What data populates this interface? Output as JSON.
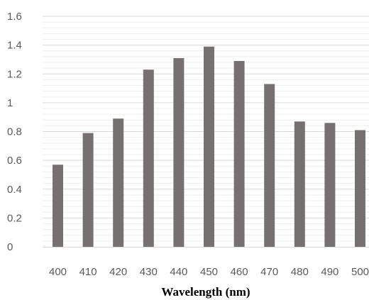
{
  "chart_data": {
    "type": "bar",
    "title": "",
    "xlabel": "Wavelength (nm)",
    "ylabel": "",
    "categories": [
      "400",
      "410",
      "420",
      "430",
      "440",
      "450",
      "460",
      "470",
      "480",
      "490",
      "500"
    ],
    "values": [
      0.57,
      0.79,
      0.89,
      1.23,
      1.31,
      1.39,
      1.29,
      1.13,
      0.87,
      0.86,
      0.81
    ],
    "ylim": [
      0,
      1.6
    ],
    "yticks": [
      "0",
      "0.2",
      "0.4",
      "0.6",
      "0.8",
      "1",
      "1.2",
      "1.4",
      "1.6"
    ],
    "ytick_step": 0.2,
    "minor_gridlines": true,
    "grid": true,
    "legend": "none",
    "bar_color": "#767171",
    "gridline_color": "#d9d9d9",
    "minor_gridline_color": "#eeeeee"
  }
}
